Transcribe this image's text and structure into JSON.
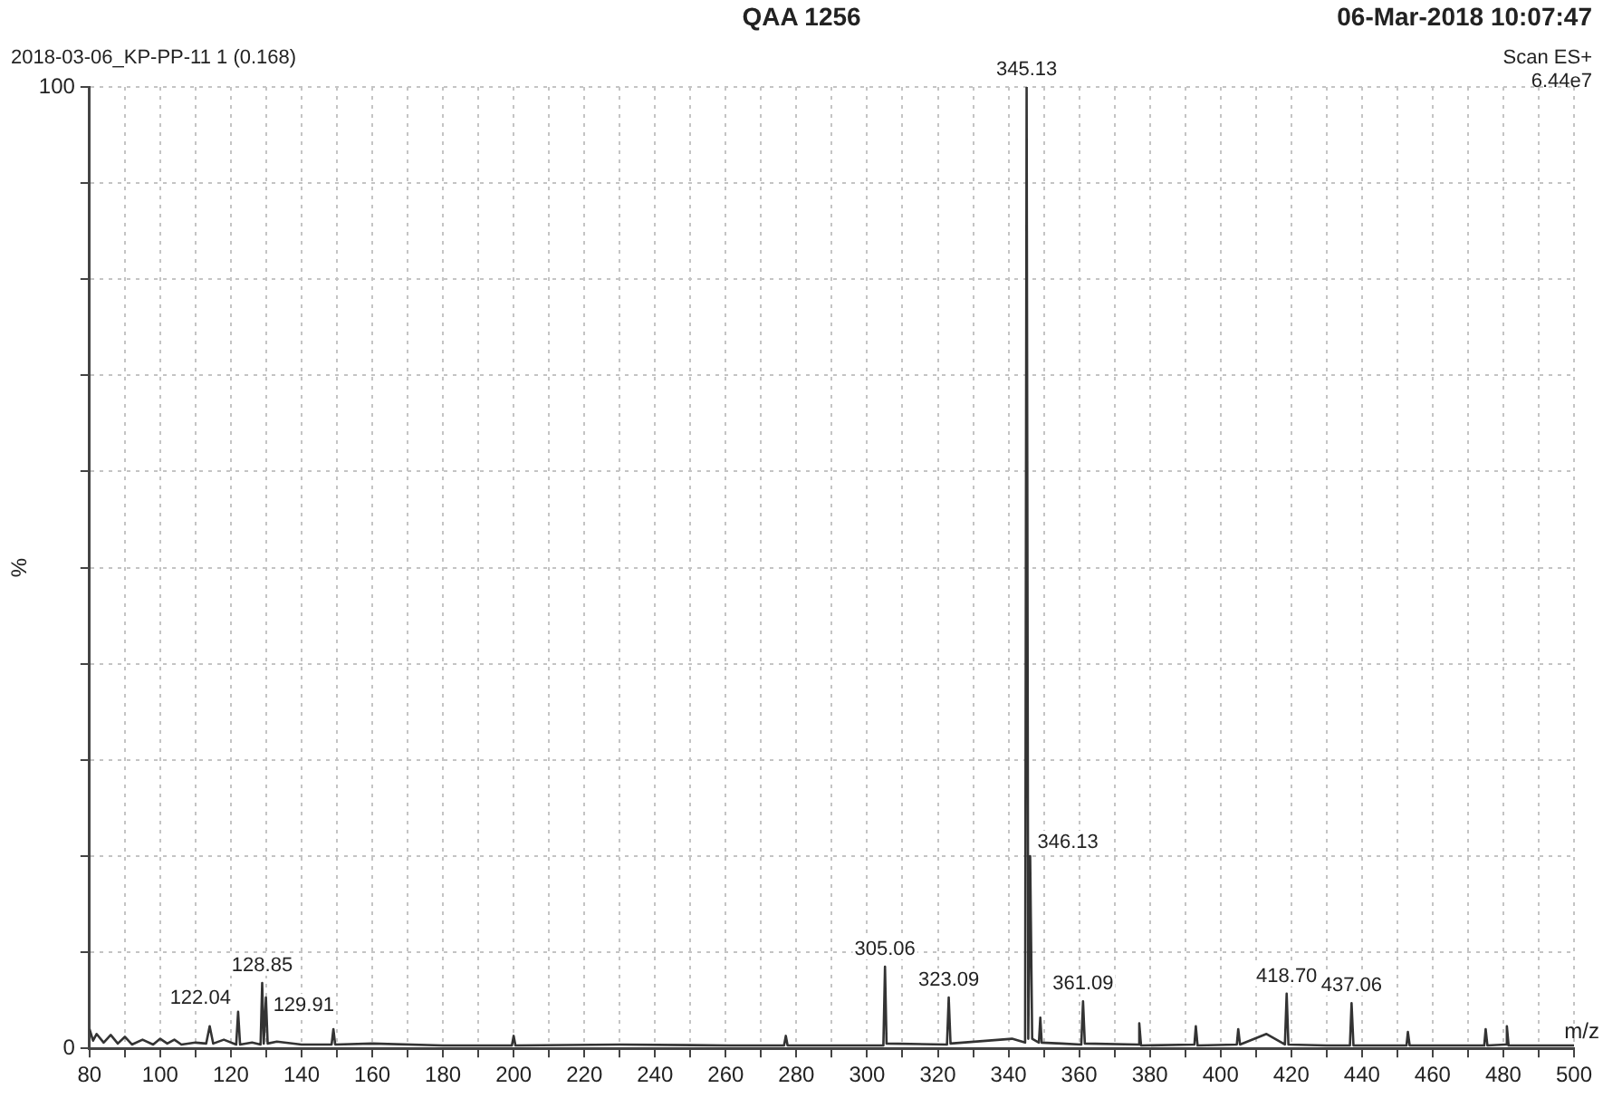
{
  "chart_data": {
    "type": "line",
    "title": "QAA 1256",
    "subtitle": "2018-03-06_KP-PP-11 1 (0.168)",
    "annotations": [
      "06-Mar-2018   10:07:47",
      "Scan ES+",
      "6.44e7",
      {
        "text": "345.13",
        "x": 345.13,
        "y": 100
      },
      {
        "text": "346.13",
        "x": 346.13,
        "y": 20
      },
      {
        "text": "128.85",
        "x": 128.85,
        "y": 6.8
      },
      {
        "text": "129.91",
        "x": 129.91,
        "y": 5.3
      },
      {
        "text": "122.04",
        "x": 122.04,
        "y": 3.8
      },
      {
        "text": "305.06",
        "x": 305.06,
        "y": 8.5
      },
      {
        "text": "323.09",
        "x": 323.09,
        "y": 5.3
      },
      {
        "text": "361.09",
        "x": 361.09,
        "y": 4.9
      },
      {
        "text": "418.70",
        "x": 418.7,
        "y": 5.7
      },
      {
        "text": "437.06",
        "x": 437.06,
        "y": 4.7
      }
    ],
    "xlabel": "m/z",
    "ylabel": "%",
    "xlim": [
      80,
      500
    ],
    "xticks": [
      80,
      {
        "value": 90,
        "label": null
      },
      100,
      {
        "value": 110,
        "label": null
      },
      120,
      {
        "value": 130,
        "label": null
      },
      140,
      {
        "value": 150,
        "label": null
      },
      160,
      {
        "value": 170,
        "label": null
      },
      180,
      {
        "value": 190,
        "label": null
      },
      200,
      {
        "value": 210,
        "label": null
      },
      220,
      {
        "value": 230,
        "label": null
      },
      240,
      {
        "value": 250,
        "label": null
      },
      260,
      {
        "value": 270,
        "label": null
      },
      280,
      {
        "value": 290,
        "label": null
      },
      300,
      {
        "value": 310,
        "label": null
      },
      320,
      {
        "value": 330,
        "label": null
      },
      340,
      {
        "value": 350,
        "label": null
      },
      360,
      {
        "value": 370,
        "label": null
      },
      380,
      {
        "value": 390,
        "label": null
      },
      400,
      {
        "value": 410,
        "label": null
      },
      420,
      {
        "value": 430,
        "label": null
      },
      440,
      {
        "value": 450,
        "label": null
      },
      460,
      {
        "value": 470,
        "label": null
      },
      480,
      {
        "value": 490,
        "label": null
      },
      500
    ],
    "ylim": [
      0,
      100
    ],
    "yticks": [
      0,
      {
        "value": 10,
        "label": null
      },
      {
        "value": 20,
        "label": null
      },
      {
        "value": 30,
        "label": null
      },
      {
        "value": 40,
        "label": null
      },
      {
        "value": 50,
        "label": null
      },
      {
        "value": 60,
        "label": null
      },
      {
        "value": 70,
        "label": null
      },
      {
        "value": 80,
        "label": null
      },
      {
        "value": 90,
        "label": null
      },
      100
    ],
    "grid": true,
    "legend": false,
    "marker": "none",
    "line_style": "solid",
    "series": [
      {
        "color": "#333333",
        "x": [
          80,
          81,
          82,
          84,
          86,
          88,
          90,
          92,
          95,
          98,
          100,
          102,
          104,
          106,
          110,
          113,
          114,
          115,
          118,
          121.5,
          122.04,
          122.6,
          126,
          128.4,
          128.85,
          129.3,
          129.91,
          130.4,
          133,
          140,
          148.5,
          149,
          149.5,
          160,
          180,
          199.5,
          200,
          200.5,
          230,
          261,
          276.5,
          277,
          277.5,
          300,
          304.6,
          305.06,
          305.5,
          322.6,
          323.09,
          323.6,
          341,
          344.7,
          345.13,
          345.6,
          346.13,
          346.7,
          348.6,
          349,
          349.4,
          355,
          360.6,
          361.09,
          361.6,
          376.6,
          377,
          377.5,
          392.6,
          393,
          393.5,
          404.6,
          405,
          405.5,
          413,
          418.2,
          418.7,
          419.2,
          430,
          436.6,
          437.06,
          437.6,
          452.6,
          453,
          453.5,
          470,
          474.6,
          475,
          475.5,
          480.6,
          481,
          481.5,
          490,
          500
        ],
        "values": [
          2,
          0.8,
          1.5,
          0.6,
          1.4,
          0.5,
          1.2,
          0.4,
          0.9,
          0.4,
          1,
          0.5,
          0.9,
          0.4,
          0.6,
          0.5,
          2.3,
          0.5,
          0.9,
          0.4,
          3.8,
          0.4,
          0.6,
          0.4,
          6.8,
          0.5,
          5.3,
          0.5,
          0.7,
          0.4,
          0.4,
          2,
          0.4,
          0.5,
          0.3,
          0.3,
          1.3,
          0.3,
          0.4,
          0.3,
          0.3,
          1.3,
          0.3,
          0.3,
          0.3,
          8.5,
          0.5,
          0.4,
          5.3,
          0.5,
          1,
          0.6,
          100,
          1,
          20,
          1,
          0.6,
          3.2,
          0.6,
          0.5,
          0.4,
          4.9,
          0.5,
          0.4,
          2.6,
          0.3,
          0.4,
          2.3,
          0.3,
          0.4,
          2,
          0.4,
          1.5,
          0.4,
          5.7,
          0.4,
          0.3,
          0.3,
          4.7,
          0.3,
          0.3,
          1.7,
          0.3,
          0.3,
          0.3,
          2,
          0.3,
          0.4,
          2.3,
          0.3,
          0.3,
          0.3
        ]
      }
    ]
  }
}
